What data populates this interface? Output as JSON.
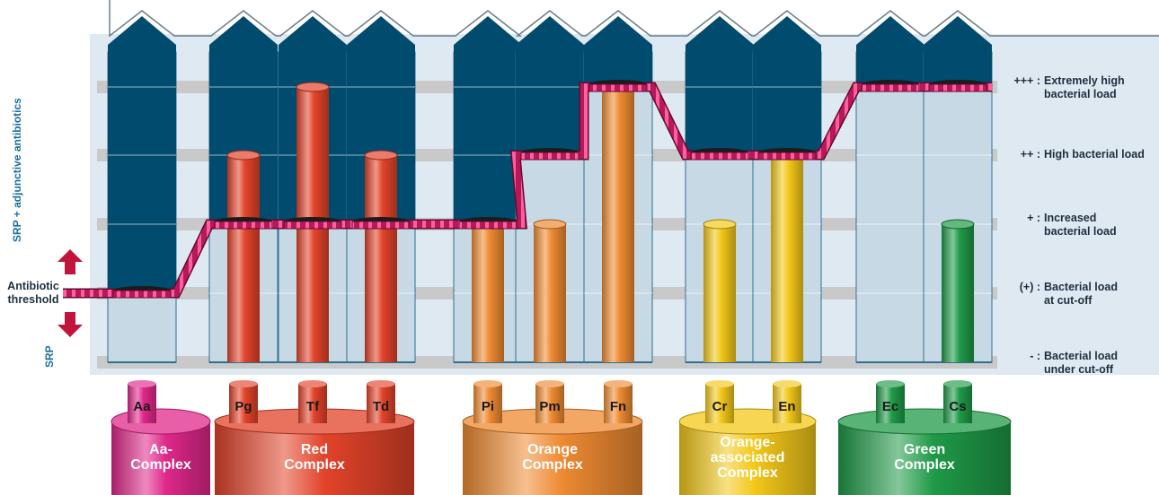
{
  "levels": [
    {
      "symbol": "+++ :",
      "line1": "Extremely high",
      "line2": "bacterial load"
    },
    {
      "symbol": "++ :",
      "line1": "High bacterial load",
      "line2": ""
    },
    {
      "symbol": "+ :",
      "line1": "Increased",
      "line2": "bacterial load"
    },
    {
      "symbol": "(+) :",
      "line1": "Bacterial load",
      "line2": "at cut-off"
    },
    {
      "symbol": "- :",
      "line1": "Bacterial load",
      "line2": "under cut-off"
    }
  ],
  "side": {
    "threshold_line1": "Antibiotic",
    "threshold_line2": "threshold",
    "up_label": "SRP + adjunctive antibiotics",
    "down_label": "SRP"
  },
  "species": [
    {
      "code": "Aa",
      "color": "#e0288a",
      "level": 0
    },
    {
      "code": "Pg",
      "color": "#e2432a",
      "level": 3
    },
    {
      "code": "Tf",
      "color": "#e2432a",
      "level": 4
    },
    {
      "code": "Td",
      "color": "#e2432a",
      "level": 3
    },
    {
      "code": "Pi",
      "color": "#ee8a32",
      "level": 2
    },
    {
      "code": "Pm",
      "color": "#ee8a32",
      "level": 2
    },
    {
      "code": "Fn",
      "color": "#ee8a32",
      "level": 4
    },
    {
      "code": "Cr",
      "color": "#f3c81a",
      "level": 2
    },
    {
      "code": "En",
      "color": "#f3c81a",
      "level": 3
    },
    {
      "code": "Ec",
      "color": "#1f9a48",
      "level": 0
    },
    {
      "code": "Cs",
      "color": "#1f9a48",
      "level": 2
    }
  ],
  "complexes": [
    {
      "name_lines": [
        "Aa-",
        "Complex"
      ],
      "color": "#e0288a"
    },
    {
      "name_lines": [
        "Red",
        "Complex"
      ],
      "color": "#e2432a"
    },
    {
      "name_lines": [
        "Orange",
        "Complex"
      ],
      "color": "#ee8a32"
    },
    {
      "name_lines": [
        "Orange-",
        "associated",
        "Complex"
      ],
      "color": "#f3c81a"
    },
    {
      "name_lines": [
        "Green",
        "Complex"
      ],
      "color": "#1f9a48"
    }
  ],
  "threshold_steps": [
    1,
    2,
    2,
    2,
    2,
    3,
    4,
    3,
    3,
    4,
    4
  ],
  "colors": {
    "navy": "#004b6e",
    "light_bg": "#dfe9f2",
    "tube_fill": "#c8d9e6",
    "band": "#c9c9c9",
    "threshold": "#b8175a",
    "threshold_stripe": "#ff5f9e"
  }
}
